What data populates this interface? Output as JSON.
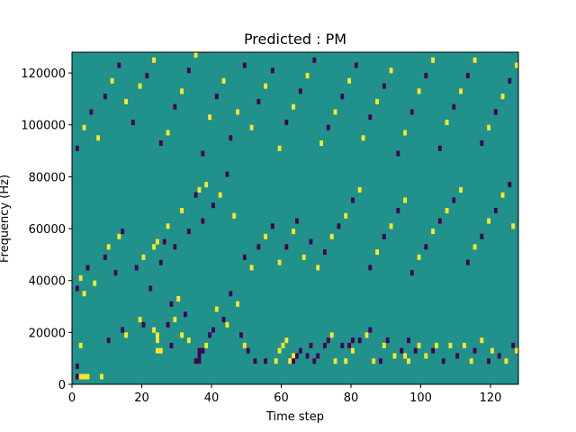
{
  "chart_data": {
    "type": "heatmap",
    "title": "Predicted : PM",
    "xlabel": "Time step",
    "ylabel": "Frequency (Hz)",
    "xlim": [
      0,
      128
    ],
    "ylim": [
      0,
      128000
    ],
    "x_ticks": [
      0,
      20,
      40,
      60,
      80,
      100,
      120
    ],
    "y_ticks": [
      0,
      20000,
      40000,
      60000,
      80000,
      100000,
      120000
    ],
    "grid": false,
    "legend": "none",
    "n_time_steps": 128,
    "n_freq_bins": 64,
    "bin_height_hz": 2000,
    "colormap": {
      "low": "#440154",
      "mid": "#21918c",
      "high": "#fde725"
    },
    "background_level": "mid",
    "cells": [
      [
        1,
        3,
        "low"
      ],
      [
        1,
        1,
        "low"
      ],
      [
        2,
        1,
        "high"
      ],
      [
        2,
        7,
        "high"
      ],
      [
        3,
        1,
        "high"
      ],
      [
        4,
        1,
        "high"
      ],
      [
        8,
        1,
        "high"
      ],
      [
        10,
        8,
        "low"
      ],
      [
        14,
        10,
        "low"
      ],
      [
        15,
        9,
        "high"
      ],
      [
        20,
        11,
        "low"
      ],
      [
        19,
        12,
        "high"
      ],
      [
        23,
        10,
        "high"
      ],
      [
        24,
        8,
        "high"
      ],
      [
        24,
        9,
        "high"
      ],
      [
        24,
        6,
        "high"
      ],
      [
        25,
        6,
        "high"
      ],
      [
        27,
        11,
        "low"
      ],
      [
        28,
        7,
        "low"
      ],
      [
        29,
        12,
        "high"
      ],
      [
        28,
        15,
        "low"
      ],
      [
        30,
        16,
        "high"
      ],
      [
        31,
        9,
        "high"
      ],
      [
        32,
        13,
        "low"
      ],
      [
        33,
        8,
        "high"
      ],
      [
        35,
        4,
        "low"
      ],
      [
        36,
        4,
        "low"
      ],
      [
        36,
        5,
        "low"
      ],
      [
        36,
        6,
        "low"
      ],
      [
        37,
        6,
        "low"
      ],
      [
        38,
        7,
        "high"
      ],
      [
        39,
        9,
        "low"
      ],
      [
        40,
        10,
        "low"
      ],
      [
        41,
        14,
        "high"
      ],
      [
        43,
        12,
        "low"
      ],
      [
        44,
        11,
        "high"
      ],
      [
        45,
        17,
        "low"
      ],
      [
        47,
        15,
        "high"
      ],
      [
        48,
        9,
        "low"
      ],
      [
        49,
        7,
        "high"
      ],
      [
        50,
        6,
        "low"
      ],
      [
        52,
        4,
        "low"
      ],
      [
        55,
        4,
        "low"
      ],
      [
        58,
        4,
        "high"
      ],
      [
        59,
        6,
        "high"
      ],
      [
        60,
        7,
        "high"
      ],
      [
        61,
        8,
        "high"
      ],
      [
        62,
        4,
        "high"
      ],
      [
        63,
        5,
        "high"
      ],
      [
        63,
        4,
        "low"
      ],
      [
        64,
        5,
        "low"
      ],
      [
        65,
        6,
        "low"
      ],
      [
        67,
        5,
        "low"
      ],
      [
        68,
        7,
        "low"
      ],
      [
        69,
        4,
        "low"
      ],
      [
        70,
        5,
        "low"
      ],
      [
        72,
        7,
        "low"
      ],
      [
        73,
        8,
        "low"
      ],
      [
        74,
        9,
        "high"
      ],
      [
        75,
        4,
        "high"
      ],
      [
        77,
        7,
        "low"
      ],
      [
        78,
        4,
        "high"
      ],
      [
        79,
        7,
        "low"
      ],
      [
        80,
        6,
        "high"
      ],
      [
        80,
        8,
        "low"
      ],
      [
        82,
        8,
        "low"
      ],
      [
        84,
        9,
        "high"
      ],
      [
        85,
        10,
        "low"
      ],
      [
        86,
        4,
        "high"
      ],
      [
        88,
        4,
        "low"
      ],
      [
        89,
        7,
        "high"
      ],
      [
        90,
        8,
        "low"
      ],
      [
        92,
        5,
        "high"
      ],
      [
        94,
        6,
        "low"
      ],
      [
        95,
        5,
        "high"
      ],
      [
        96,
        4,
        "high"
      ],
      [
        96,
        8,
        "low"
      ],
      [
        98,
        6,
        "low"
      ],
      [
        99,
        7,
        "high"
      ],
      [
        101,
        5,
        "high"
      ],
      [
        103,
        6,
        "low"
      ],
      [
        104,
        7,
        "high"
      ],
      [
        106,
        4,
        "low"
      ],
      [
        108,
        7,
        "high"
      ],
      [
        110,
        5,
        "low"
      ],
      [
        112,
        7,
        "high"
      ],
      [
        114,
        4,
        "high"
      ],
      [
        115,
        6,
        "low"
      ],
      [
        117,
        8,
        "high"
      ],
      [
        119,
        4,
        "low"
      ],
      [
        120,
        6,
        "high"
      ],
      [
        122,
        5,
        "low"
      ],
      [
        124,
        4,
        "high"
      ],
      [
        126,
        7,
        "low"
      ],
      [
        127,
        6,
        "high"
      ],
      [
        1,
        18,
        "low"
      ],
      [
        2,
        20,
        "high"
      ],
      [
        3,
        17,
        "high"
      ],
      [
        4,
        22,
        "low"
      ],
      [
        6,
        19,
        "high"
      ],
      [
        9,
        24,
        "low"
      ],
      [
        10,
        26,
        "high"
      ],
      [
        12,
        21,
        "low"
      ],
      [
        13,
        28,
        "high"
      ],
      [
        14,
        29,
        "low"
      ],
      [
        18,
        22,
        "low"
      ],
      [
        20,
        24,
        "high"
      ],
      [
        22,
        18,
        "low"
      ],
      [
        23,
        26,
        "high"
      ],
      [
        24,
        27,
        "high"
      ],
      [
        25,
        23,
        "low"
      ],
      [
        26,
        27,
        "low"
      ],
      [
        27,
        30,
        "high"
      ],
      [
        29,
        26,
        "low"
      ],
      [
        31,
        33,
        "high"
      ],
      [
        33,
        29,
        "low"
      ],
      [
        35,
        36,
        "low"
      ],
      [
        36,
        37,
        "high"
      ],
      [
        37,
        31,
        "low"
      ],
      [
        38,
        38,
        "high"
      ],
      [
        40,
        34,
        "low"
      ],
      [
        42,
        36,
        "high"
      ],
      [
        44,
        40,
        "low"
      ],
      [
        46,
        32,
        "high"
      ],
      [
        49,
        24,
        "low"
      ],
      [
        51,
        22,
        "high"
      ],
      [
        53,
        26,
        "low"
      ],
      [
        55,
        28,
        "high"
      ],
      [
        57,
        30,
        "low"
      ],
      [
        59,
        23,
        "high"
      ],
      [
        61,
        26,
        "low"
      ],
      [
        63,
        29,
        "high"
      ],
      [
        64,
        31,
        "low"
      ],
      [
        66,
        24,
        "high"
      ],
      [
        68,
        27,
        "low"
      ],
      [
        70,
        22,
        "high"
      ],
      [
        72,
        25,
        "low"
      ],
      [
        74,
        28,
        "high"
      ],
      [
        76,
        30,
        "low"
      ],
      [
        78,
        32,
        "high"
      ],
      [
        80,
        35,
        "low"
      ],
      [
        82,
        37,
        "high"
      ],
      [
        85,
        22,
        "low"
      ],
      [
        87,
        25,
        "high"
      ],
      [
        89,
        28,
        "low"
      ],
      [
        91,
        30,
        "high"
      ],
      [
        93,
        33,
        "low"
      ],
      [
        95,
        35,
        "high"
      ],
      [
        97,
        21,
        "low"
      ],
      [
        99,
        24,
        "high"
      ],
      [
        101,
        26,
        "low"
      ],
      [
        103,
        29,
        "high"
      ],
      [
        105,
        31,
        "low"
      ],
      [
        107,
        33,
        "high"
      ],
      [
        109,
        35,
        "low"
      ],
      [
        111,
        37,
        "high"
      ],
      [
        113,
        23,
        "low"
      ],
      [
        115,
        26,
        "high"
      ],
      [
        117,
        28,
        "low"
      ],
      [
        119,
        31,
        "high"
      ],
      [
        121,
        33,
        "low"
      ],
      [
        123,
        36,
        "high"
      ],
      [
        125,
        38,
        "low"
      ],
      [
        126,
        30,
        "high"
      ],
      [
        1,
        45,
        "low"
      ],
      [
        3,
        49,
        "high"
      ],
      [
        5,
        52,
        "low"
      ],
      [
        7,
        47,
        "high"
      ],
      [
        9,
        55,
        "low"
      ],
      [
        11,
        58,
        "high"
      ],
      [
        13,
        61,
        "low"
      ],
      [
        15,
        54,
        "high"
      ],
      [
        17,
        50,
        "low"
      ],
      [
        19,
        57,
        "high"
      ],
      [
        21,
        59,
        "low"
      ],
      [
        23,
        62,
        "high"
      ],
      [
        25,
        46,
        "low"
      ],
      [
        27,
        48,
        "high"
      ],
      [
        29,
        53,
        "low"
      ],
      [
        31,
        56,
        "high"
      ],
      [
        33,
        60,
        "low"
      ],
      [
        35,
        63,
        "high"
      ],
      [
        37,
        44,
        "low"
      ],
      [
        39,
        51,
        "high"
      ],
      [
        41,
        55,
        "low"
      ],
      [
        43,
        58,
        "high"
      ],
      [
        45,
        47,
        "low"
      ],
      [
        47,
        52,
        "high"
      ],
      [
        49,
        61,
        "low"
      ],
      [
        51,
        49,
        "high"
      ],
      [
        53,
        54,
        "low"
      ],
      [
        55,
        57,
        "high"
      ],
      [
        57,
        60,
        "low"
      ],
      [
        59,
        45,
        "high"
      ],
      [
        61,
        50,
        "low"
      ],
      [
        63,
        53,
        "high"
      ],
      [
        65,
        56,
        "low"
      ],
      [
        67,
        59,
        "high"
      ],
      [
        69,
        62,
        "low"
      ],
      [
        71,
        46,
        "high"
      ],
      [
        73,
        49,
        "low"
      ],
      [
        75,
        52,
        "high"
      ],
      [
        77,
        55,
        "low"
      ],
      [
        79,
        58,
        "high"
      ],
      [
        81,
        61,
        "low"
      ],
      [
        83,
        47,
        "high"
      ],
      [
        85,
        51,
        "low"
      ],
      [
        87,
        54,
        "high"
      ],
      [
        89,
        57,
        "low"
      ],
      [
        91,
        60,
        "high"
      ],
      [
        93,
        44,
        "low"
      ],
      [
        95,
        48,
        "high"
      ],
      [
        97,
        52,
        "low"
      ],
      [
        99,
        56,
        "high"
      ],
      [
        101,
        59,
        "low"
      ],
      [
        103,
        62,
        "high"
      ],
      [
        105,
        45,
        "low"
      ],
      [
        107,
        50,
        "high"
      ],
      [
        109,
        53,
        "low"
      ],
      [
        111,
        56,
        "high"
      ],
      [
        113,
        59,
        "low"
      ],
      [
        115,
        62,
        "high"
      ],
      [
        117,
        46,
        "low"
      ],
      [
        119,
        49,
        "high"
      ],
      [
        121,
        52,
        "low"
      ],
      [
        123,
        55,
        "high"
      ],
      [
        125,
        58,
        "low"
      ],
      [
        127,
        61,
        "high"
      ]
    ]
  }
}
